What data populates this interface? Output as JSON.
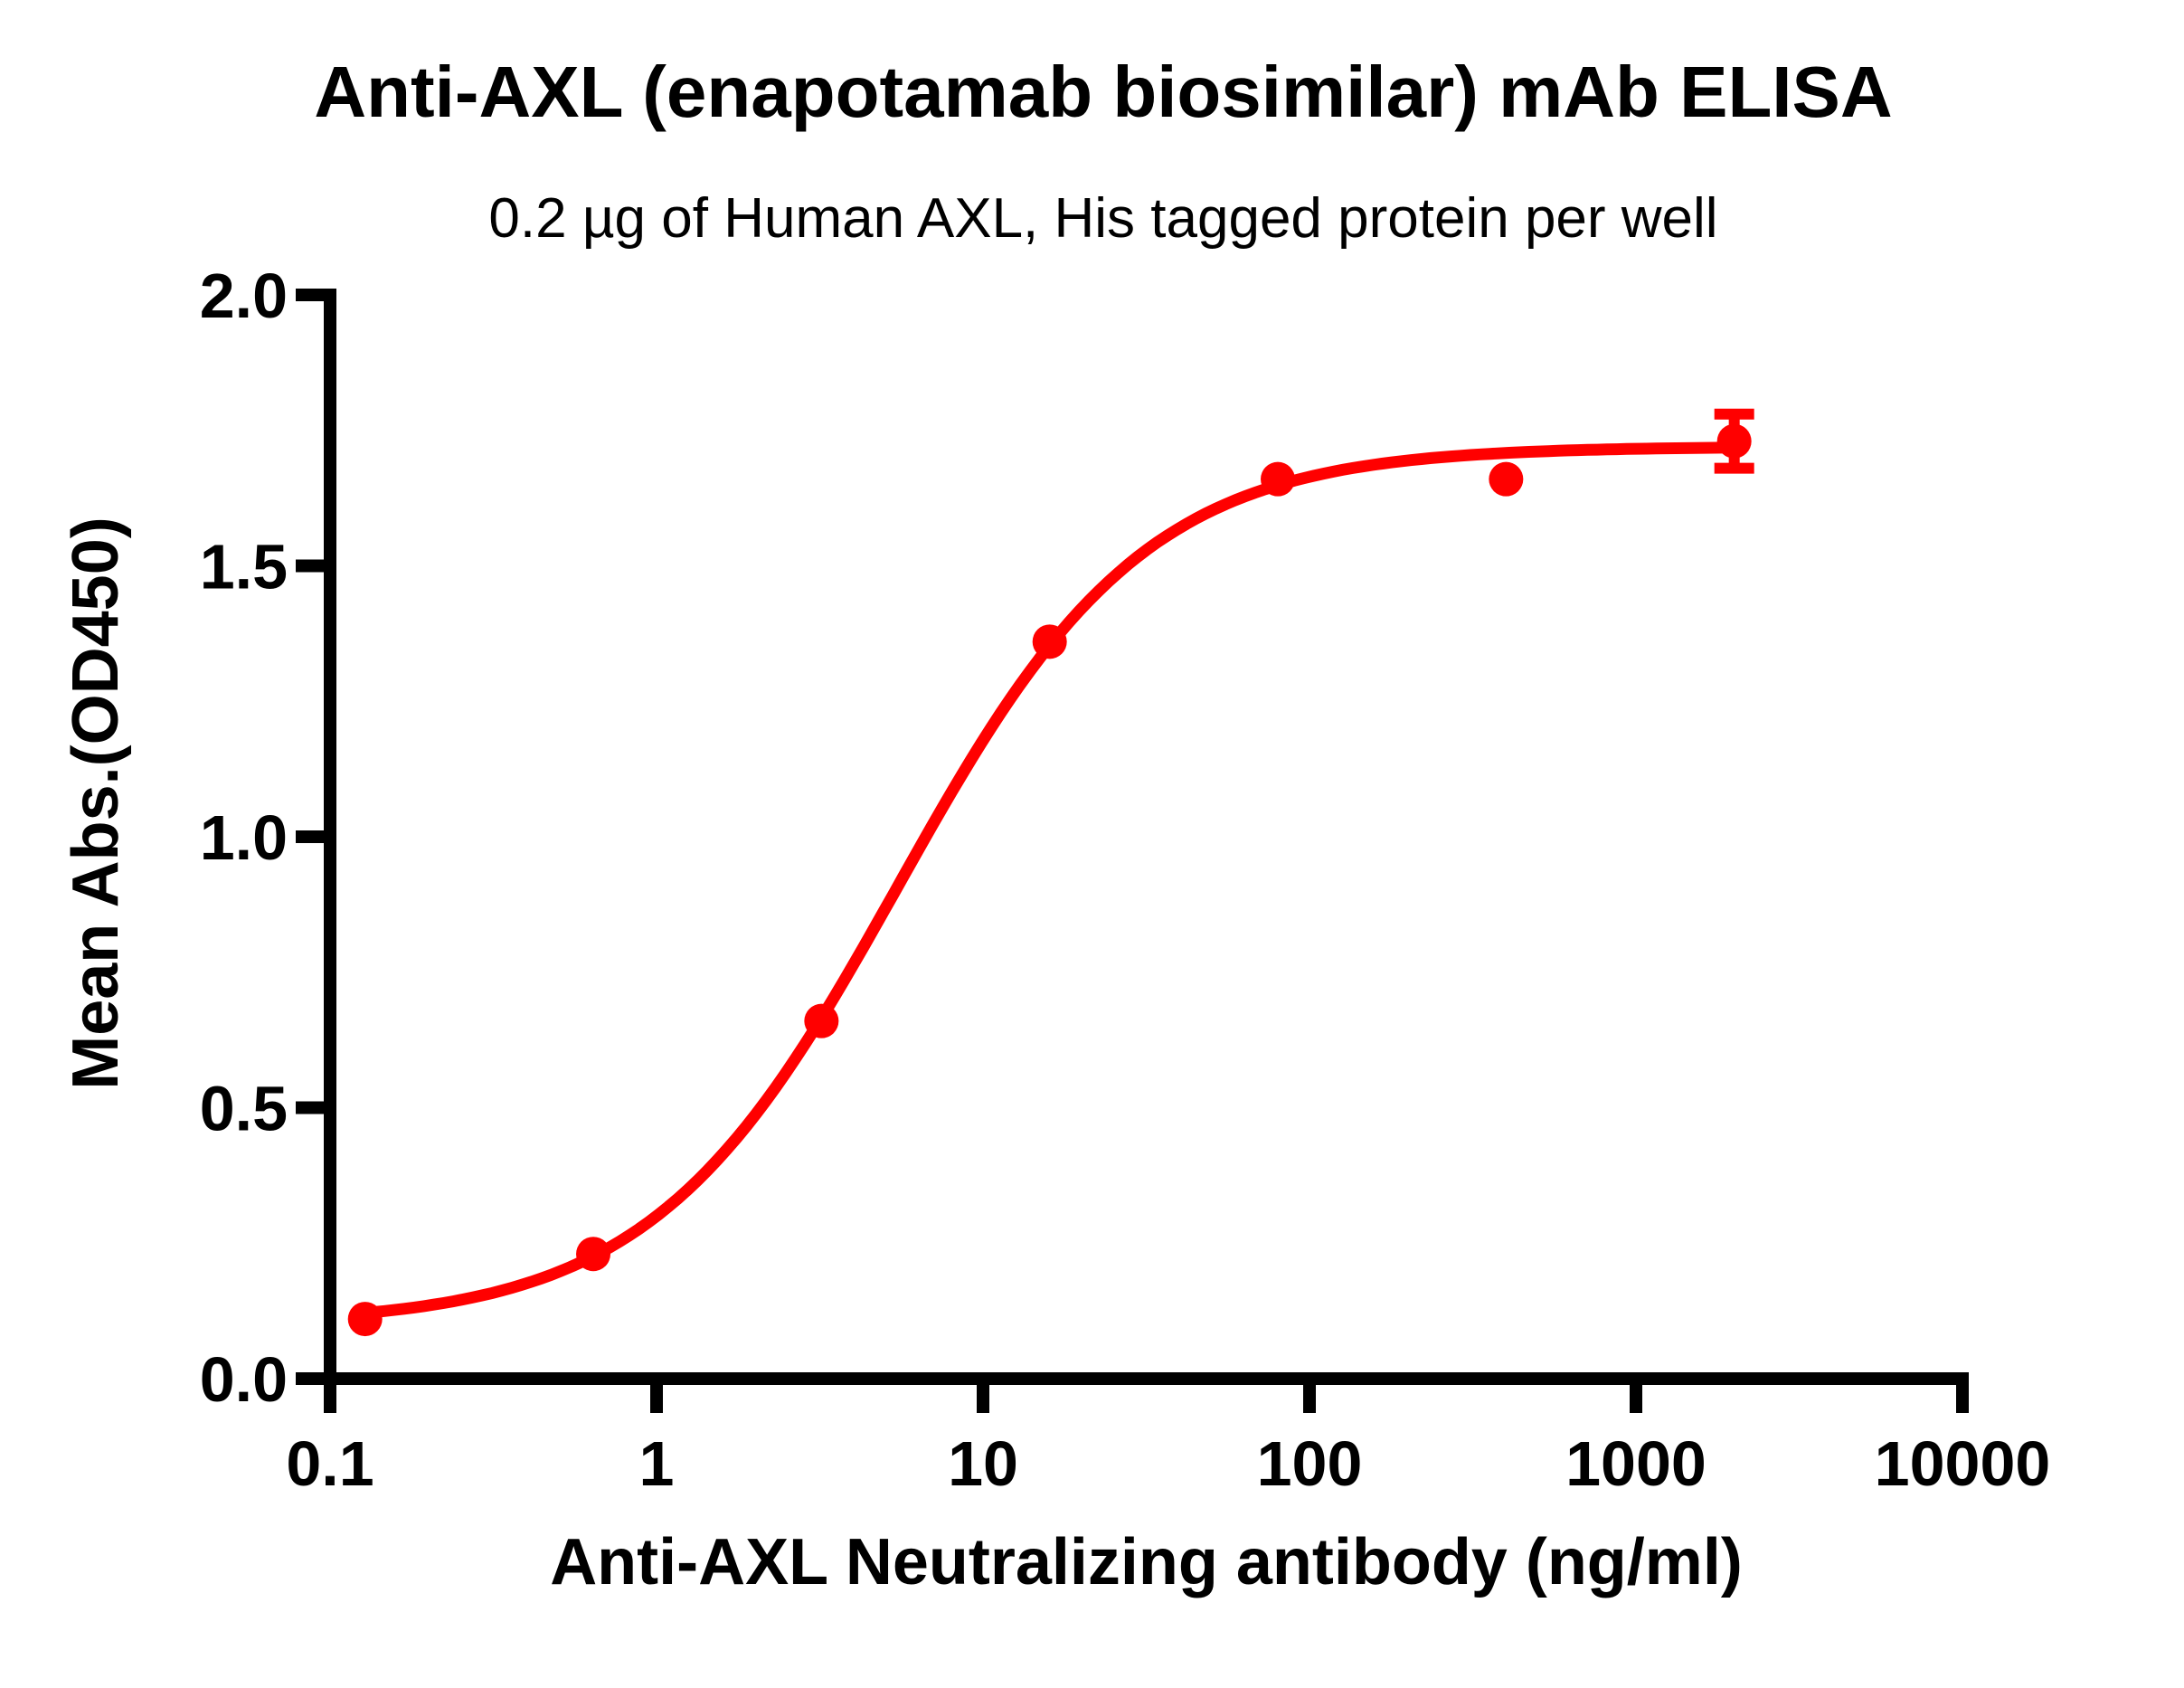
{
  "chart_data": {
    "type": "scatter",
    "title": "Anti-AXL (enapotamab biosimilar) mAb ELISA",
    "subtitle": "0.2 µg of Human AXL, His tagged protein per well",
    "xlabel": "Anti-AXL Neutralizing antibody (ng/ml)",
    "ylabel": "Mean Abs.(OD450)",
    "x_scale": "log10",
    "xlim": [
      0.1,
      10000
    ],
    "ylim": [
      0.0,
      2.0
    ],
    "x_tick_values": [
      0.1,
      1,
      10,
      100,
      1000,
      10000
    ],
    "x_tick_labels": [
      "0.1",
      "1",
      "10",
      "100",
      "1000",
      "10000"
    ],
    "y_tick_values": [
      0.0,
      0.5,
      1.0,
      1.5,
      2.0
    ],
    "y_tick_labels": [
      "0.0",
      "0.5",
      "1.0",
      "1.5",
      "2.0"
    ],
    "grid": false,
    "legend": false,
    "colors": {
      "series": "#FF0000",
      "axis": "#000000",
      "background": "#FFFFFF"
    },
    "series": [
      {
        "name": "Anti-AXL (enapotamab biosimilar) mAb",
        "color": "#FF0000",
        "marker": "circle",
        "points": [
          {
            "x": 0.128,
            "y": 0.11
          },
          {
            "x": 0.64,
            "y": 0.23
          },
          {
            "x": 3.2,
            "y": 0.66
          },
          {
            "x": 16,
            "y": 1.36
          },
          {
            "x": 80,
            "y": 1.66
          },
          {
            "x": 400,
            "y": 1.66
          },
          {
            "x": 2000,
            "y": 1.73,
            "sd": 0.05
          }
        ],
        "fit_curve": {
          "model": "4PL",
          "bottom": 0.1,
          "top": 1.72,
          "ec50": 5.5,
          "hill": 1.15,
          "x_range": [
            0.128,
            2000
          ]
        }
      }
    ]
  }
}
